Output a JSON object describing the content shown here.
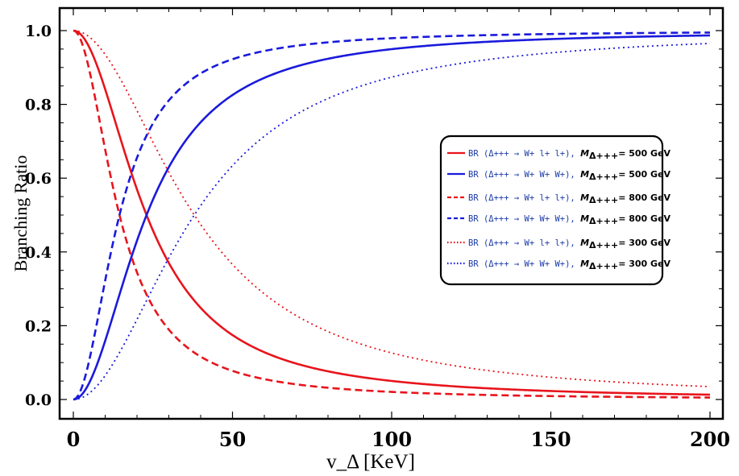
{
  "chart_data": {
    "type": "line",
    "xlabel": "v_Δ [KeV]",
    "ylabel": "Branching Ratio",
    "xlim": [
      0,
      200
    ],
    "ylim": [
      0,
      1.0
    ],
    "xticks": [
      0,
      50,
      100,
      150,
      200
    ],
    "xtick_labels": [
      "0",
      "50",
      "100",
      "150",
      "200"
    ],
    "yticks": [
      0.0,
      0.2,
      0.4,
      0.6,
      0.8,
      1.0
    ],
    "ytick_labels": [
      "0.0",
      "0.2",
      "0.4",
      "0.6",
      "0.8",
      "1.0"
    ],
    "grid": false,
    "legend_position": "right",
    "legend_prefix": "BR",
    "legend_mass_prefix": "M",
    "legend_mass_sub": "Δ+++",
    "series": [
      {
        "name": "BR (Δ+++ → W+ l+ l+), MΔ+++= 500 GeV",
        "decay": "(Δ+++ → W+ l+ l+),",
        "mass": "= 500 GeV",
        "color": "#e8141c",
        "dash": "solid",
        "kind": "lep",
        "x0": 23,
        "k": 2
      },
      {
        "name": "BR (Δ+++ → W+ W+ W+), MΔ+++= 500 GeV",
        "decay": "(Δ+++ → W+ W+ W+),",
        "mass": "= 500 GeV",
        "color": "#1a1adc",
        "dash": "solid",
        "kind": "gauge",
        "x0": 23,
        "k": 2
      },
      {
        "name": "BR (Δ+++ → W+ l+ l+), MΔ+++= 800 GeV",
        "decay": "(Δ+++ → W+ l+ l+),",
        "mass": "= 800 GeV",
        "color": "#e8141c",
        "dash": "dashed",
        "kind": "lep",
        "x0": 14.5,
        "k": 2
      },
      {
        "name": "BR (Δ+++ → W+ W+ W+), MΔ+++= 800 GeV",
        "decay": "(Δ+++ → W+ W+ W+),",
        "mass": "= 800 GeV",
        "color": "#1a1adc",
        "dash": "dashed",
        "kind": "gauge",
        "x0": 14.5,
        "k": 2
      },
      {
        "name": "BR (Δ+++ → W+ l+ l+), MΔ+++= 300 GeV",
        "decay": "(Δ+++ → W+ l+ l+),",
        "mass": "= 300 GeV",
        "color": "#e8141c",
        "dash": "dotted",
        "kind": "lep",
        "x0": 38,
        "k": 2
      },
      {
        "name": "BR (Δ+++ → W+ W+ W+), MΔ+++= 300 GeV",
        "decay": "(Δ+++ → W+ W+ W+),",
        "mass": "= 300 GeV",
        "color": "#1a1adc",
        "dash": "dotted",
        "kind": "gauge",
        "x0": 38,
        "k": 2
      }
    ]
  }
}
